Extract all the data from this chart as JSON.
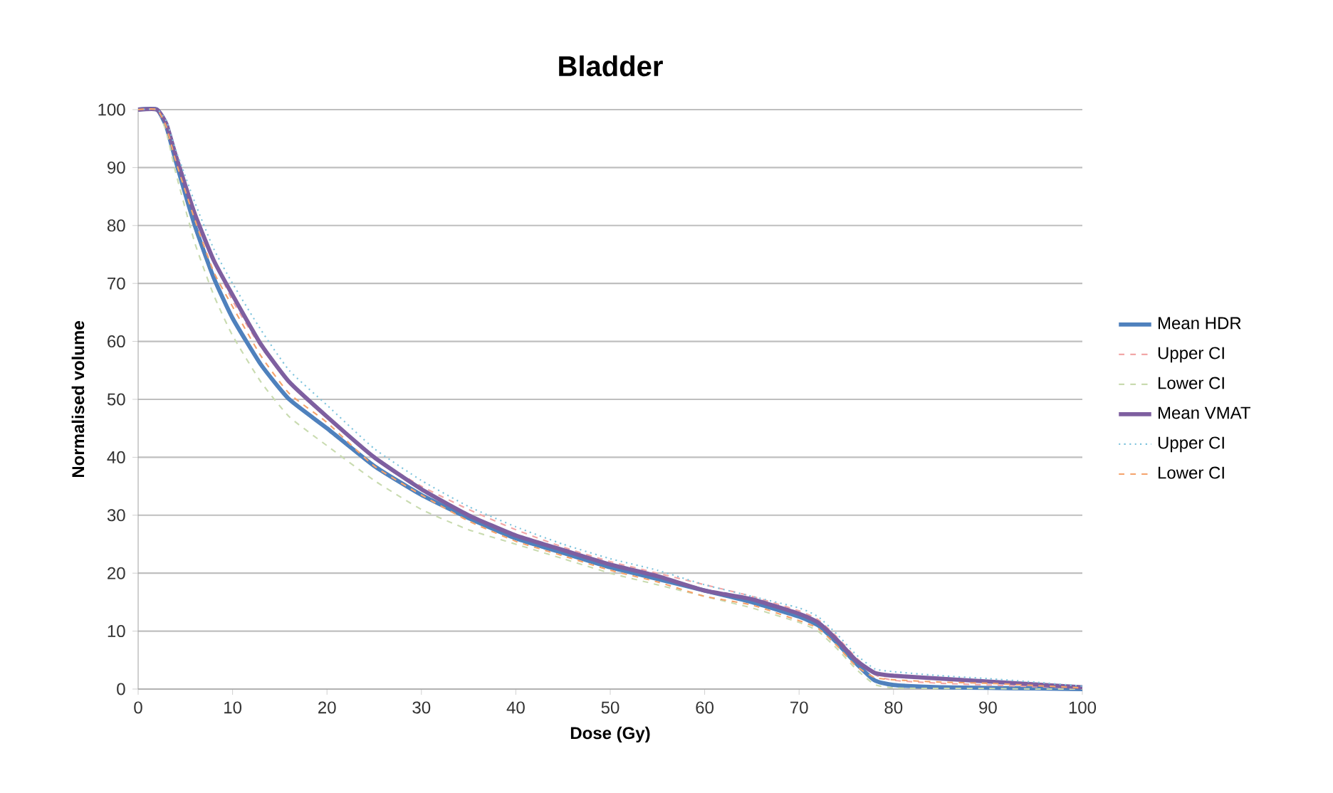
{
  "chart_data": {
    "type": "line",
    "title": "Bladder",
    "xlabel": "Dose (Gy)",
    "ylabel": "Normalised volume",
    "x": [
      0,
      2,
      3,
      4,
      6,
      8,
      10,
      13,
      16,
      20,
      25,
      30,
      35,
      40,
      45,
      50,
      55,
      60,
      65,
      70,
      72,
      74,
      76,
      78,
      80,
      85,
      90,
      95,
      100
    ],
    "series": [
      {
        "name": "Mean HDR",
        "color": "#4f81bd",
        "line_style": "solid",
        "values": [
          100,
          100,
          97,
          91,
          80,
          71,
          64,
          56,
          50,
          45,
          38.5,
          33.5,
          29.5,
          26,
          23.5,
          21,
          19,
          17,
          15,
          12.5,
          11,
          8,
          4.5,
          1.5,
          0.7,
          0.3,
          0.2,
          0.1,
          0
        ]
      },
      {
        "name": "Upper CI",
        "color": "#f2a7a7",
        "line_style": "dashed",
        "values": [
          100,
          100,
          97.5,
          92,
          82,
          74,
          67,
          59,
          53,
          47,
          40,
          35,
          31,
          27.5,
          24.5,
          22,
          20,
          18,
          16,
          13.5,
          12,
          9,
          5.5,
          2.5,
          1.5,
          1,
          0.7,
          0.4,
          0.2
        ]
      },
      {
        "name": "Lower CI",
        "color": "#c9dbb0",
        "line_style": "dashed",
        "values": [
          100,
          100,
          96,
          89,
          77,
          68,
          61,
          53,
          47,
          42,
          36,
          31,
          27.5,
          25,
          22.5,
          20,
          18,
          16,
          14,
          11.5,
          10,
          7,
          3.5,
          0.8,
          0.2,
          0.1,
          0.1,
          0,
          0
        ]
      },
      {
        "name": "Mean VMAT",
        "color": "#7e5fa0",
        "line_style": "solid",
        "values": [
          100,
          100,
          97.5,
          92,
          82,
          74,
          68,
          59.5,
          53,
          47,
          40,
          34.5,
          30,
          26.5,
          24,
          21.5,
          19.5,
          17,
          15.5,
          13,
          11.5,
          8.5,
          5,
          2.8,
          2.3,
          1.8,
          1.3,
          0.8,
          0.3
        ]
      },
      {
        "name": "Upper CI",
        "color": "#7fc4dd",
        "line_style": "dotted",
        "values": [
          100,
          100,
          98,
          93,
          84,
          76,
          70,
          62,
          55,
          49,
          41.5,
          36,
          31.5,
          28,
          25,
          22.5,
          20.5,
          18,
          16,
          14,
          12.5,
          9.5,
          6,
          3.5,
          3,
          2.3,
          1.8,
          1.2,
          0.5
        ]
      },
      {
        "name": "Lower CI",
        "color": "#f5a36b",
        "line_style": "dashed",
        "values": [
          100,
          100,
          97,
          91,
          81,
          72,
          66,
          57.5,
          51,
          46,
          38.5,
          33.5,
          29,
          25.5,
          23,
          20.5,
          18.5,
          16,
          14.5,
          11.8,
          10.5,
          7.5,
          4,
          2,
          1.6,
          1.2,
          1,
          0.6,
          0.2
        ]
      }
    ],
    "xlim": [
      0,
      100
    ],
    "xticks": [
      0,
      10,
      20,
      30,
      40,
      50,
      60,
      70,
      80,
      90,
      100
    ],
    "ylim": [
      0,
      100
    ],
    "yticks": [
      0,
      10,
      20,
      30,
      40,
      50,
      60,
      70,
      80,
      90,
      100
    ],
    "grid": "y",
    "legend": "right"
  }
}
